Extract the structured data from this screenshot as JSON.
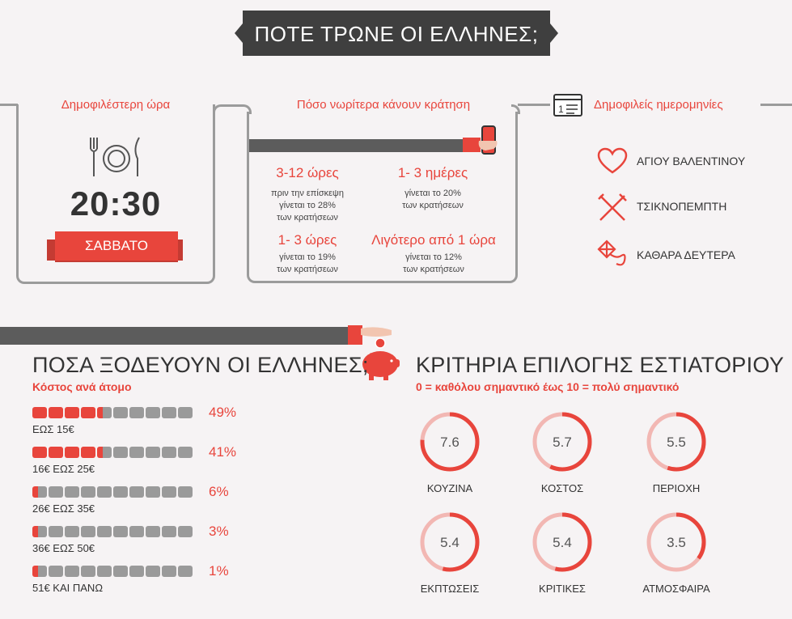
{
  "title": "ΠΟΤΕ ΤΡΩΝΕ ΟΙ ΕΛΛΗΝΕΣ;",
  "popular_hour": {
    "heading": "Δημοφιλέστερη ώρα",
    "time": "20:30",
    "day": "ΣΑΒΒΑΤΟ"
  },
  "booking": {
    "heading": "Πόσο νωρίτερα κάνουν κράτηση",
    "items": [
      {
        "big": "3-12 ώρες",
        "line1": "πριν την επίσκεψη",
        "line2": "γίνεται το 28%",
        "line3": "των κρατήσεων"
      },
      {
        "big": "1- 3 ημέρες",
        "line1": "γίνεται το 20%",
        "line2": "των κρατήσεων",
        "line3": ""
      },
      {
        "big": "1- 3 ώρες",
        "line1": "γίνεται το 19%",
        "line2": "των κρατήσεων",
        "line3": ""
      },
      {
        "big": "Λιγότερο από 1 ώρα",
        "line1": "γίνεται το 12%",
        "line2": "των κρατήσεων",
        "line3": ""
      }
    ]
  },
  "dates": {
    "heading": "Δημοφιλείς ημερομηνίες",
    "items": [
      {
        "label": "ΑΓΙΟΥ ΒΑΛΕΝΤΙΝΟΥ",
        "icon": "heart-icon"
      },
      {
        "label": "ΤΣΙΚΝΟΠΕΜΠΤΗ",
        "icon": "crossed-utensils-icon"
      },
      {
        "label": "ΚΑΘΑΡΑ ΔΕΥΤΕΡΑ",
        "icon": "kite-icon"
      }
    ]
  },
  "spending": {
    "title": "ΠΟΣΑ ΞΟΔΕΥΟΥΝ ΟΙ ΕΛΛΗΝΕΣ;",
    "subtitle": "Κόστος ανά άτομο",
    "rows": [
      {
        "range": "ΕΩΣ 15€",
        "percent": "49%",
        "fraction": 0.49
      },
      {
        "range": "16€ ΕΩΣ 25€",
        "percent": "41%",
        "fraction": 0.41
      },
      {
        "range": "26€ ΕΩΣ 35€",
        "percent": "6%",
        "fraction": 0.06
      },
      {
        "range": "36€ ΕΩΣ 50€",
        "percent": "3%",
        "fraction": 0.03
      },
      {
        "range": "51€ ΚΑΙ ΠΑΝΩ",
        "percent": "1%",
        "fraction": 0.01
      }
    ]
  },
  "criteria": {
    "title": "ΚΡΙΤΗΡΙΑ ΕΠΙΛΟΓΗΣ ΕΣΤΙΑΤΟΡΙΟΥ",
    "subtitle": "0 = καθόλου σημαντικό έως 10 = πολύ σημαντικό",
    "items": [
      {
        "label": "ΚΟΥΖΙΝΑ",
        "value": "7.6",
        "score": 7.6
      },
      {
        "label": "ΚΟΣΤΟΣ",
        "value": "5.7",
        "score": 5.7
      },
      {
        "label": "ΠΕΡΙΟΧΗ",
        "value": "5.5",
        "score": 5.5
      },
      {
        "label": "ΕΚΠΤΩΣΕΙΣ",
        "value": "5.4",
        "score": 5.4
      },
      {
        "label": "ΚΡΙΤΙΚΕΣ",
        "value": "5.4",
        "score": 5.4
      },
      {
        "label": "ΑΤΜΟΣΦΑΙΡΑ",
        "value": "3.5",
        "score": 3.5
      }
    ]
  },
  "colors": {
    "accent": "#e8453c",
    "grey": "#9b9b9b",
    "dark": "#3f3f3f",
    "pale": "#f2b7b3"
  }
}
